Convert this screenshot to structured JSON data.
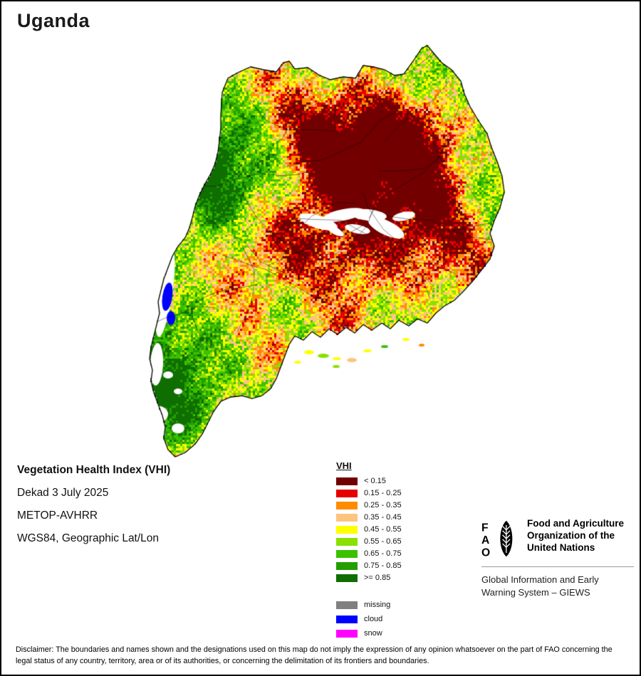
{
  "page": {
    "title": "Uganda"
  },
  "info": {
    "product": "Vegetation Health Index (VHI)",
    "dekad": "Dekad 3 July 2025",
    "sensor": "METOP-AVHRR",
    "projection": "WGS84, Geographic Lat/Lon"
  },
  "legend": {
    "title": "VHI",
    "items": [
      {
        "label": "< 0.15",
        "color": "#730000"
      },
      {
        "label": "0.15 - 0.25",
        "color": "#e60000"
      },
      {
        "label": "0.25 - 0.35",
        "color": "#ff8c00"
      },
      {
        "label": "0.35 - 0.45",
        "color": "#fdc480"
      },
      {
        "label": "0.45 - 0.55",
        "color": "#ffff00"
      },
      {
        "label": "0.55 - 0.65",
        "color": "#8ae000"
      },
      {
        "label": "0.65 - 0.75",
        "color": "#3bc100"
      },
      {
        "label": "0.75 - 0.85",
        "color": "#239e00"
      },
      {
        "label": ">= 0.85",
        "color": "#0f6e00"
      }
    ],
    "extra_items": [
      {
        "label": "missing",
        "color": "#808080"
      },
      {
        "label": "cloud",
        "color": "#0000ff"
      },
      {
        "label": "snow",
        "color": "#ff00ff"
      }
    ]
  },
  "fao": {
    "logo_letters": [
      "F",
      "A",
      "O"
    ],
    "org_lines": [
      "Food and Agriculture",
      "Organization of the",
      "United Nations"
    ],
    "giews_lines": [
      "Global Information and Early",
      "Warning System – GIEWS"
    ]
  },
  "disclaimer": "Disclaimer: The boundaries and names shown and the designations used on this map do not imply the expression of any opinion whatsoever on the part of FAO concerning the legal status of any country, territory, area or of its authorities, or concerning the delimitation of its frontiers and boundaries."
}
